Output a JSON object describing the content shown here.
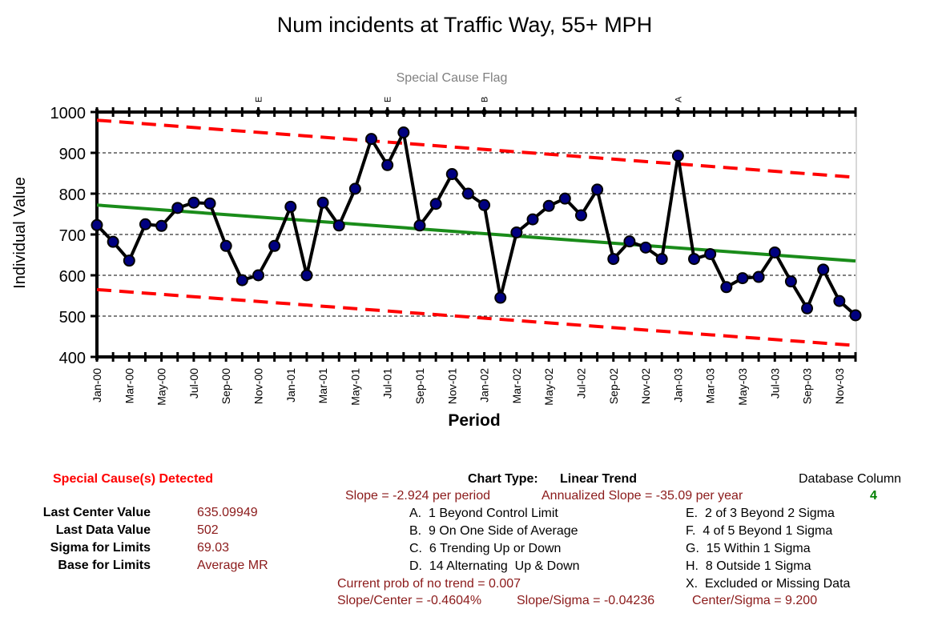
{
  "chart_data": {
    "type": "line",
    "title": "Num incidents at Traffic Way, 55+ MPH",
    "subtitle": "Special Cause Flag",
    "xlabel": "Period",
    "ylabel": "Individual Value",
    "ylim": [
      400,
      1000
    ],
    "yticks": [
      "1000",
      "900",
      "800",
      "700",
      "600",
      "500",
      "400"
    ],
    "grid": true,
    "x_tick_labels": [
      "Jan-00",
      "Mar-00",
      "May-00",
      "Jul-00",
      "Sep-00",
      "Nov-00",
      "Jan-01",
      "Mar-01",
      "May-01",
      "Jul-01",
      "Sep-01",
      "Nov-01",
      "Jan-02",
      "Mar-02",
      "May-02",
      "Jul-02",
      "Sep-02",
      "Nov-02",
      "Jan-03",
      "Mar-03",
      "May-03",
      "Jul-03",
      "Sep-03",
      "Nov-03"
    ],
    "periods": [
      "Jan-00",
      "Feb-00",
      "Mar-00",
      "Apr-00",
      "May-00",
      "Jun-00",
      "Jul-00",
      "Aug-00",
      "Sep-00",
      "Oct-00",
      "Nov-00",
      "Dec-00",
      "Jan-01",
      "Feb-01",
      "Mar-01",
      "Apr-01",
      "May-01",
      "Jun-01",
      "Jul-01",
      "Aug-01",
      "Sep-01",
      "Oct-01",
      "Nov-01",
      "Dec-01",
      "Jan-02",
      "Feb-02",
      "Mar-02",
      "Apr-02",
      "May-02",
      "Jun-02",
      "Jul-02",
      "Aug-02",
      "Sep-02",
      "Oct-02",
      "Nov-02",
      "Dec-02",
      "Jan-03",
      "Feb-03",
      "Mar-03",
      "Apr-03",
      "May-03",
      "Jun-03",
      "Jul-03",
      "Aug-03",
      "Sep-03",
      "Oct-03",
      "Nov-03",
      "Dec-03"
    ],
    "series": [
      {
        "values": [
          723,
          682,
          636,
          725,
          721,
          765,
          778,
          776,
          672,
          588,
          600,
          672,
          768,
          600,
          778,
          722,
          812,
          934,
          870,
          950,
          722,
          775,
          848,
          800,
          772,
          545,
          705,
          737,
          770,
          788,
          747,
          810,
          640,
          683,
          668,
          640,
          893,
          640,
          652,
          571,
          593,
          596,
          656,
          585,
          519,
          614,
          537,
          502
        ],
        "color": "#000080"
      },
      {
        "values": [
          772,
          635
        ],
        "color": "#1a8c1a"
      },
      {
        "values": [
          980,
          840
        ],
        "color": "#ff0000"
      },
      {
        "values": [
          565,
          428
        ],
        "color": "#ff0000"
      }
    ],
    "flags": [
      {
        "period": "Nov-00",
        "label": "E"
      },
      {
        "period": "Jun-01",
        "label": ""
      },
      {
        "period": "Jul-01",
        "label": "E"
      },
      {
        "period": "Aug-01",
        "label": ""
      },
      {
        "period": "Jan-02",
        "label": "B"
      },
      {
        "period": "Jan-03",
        "label": "A"
      }
    ]
  },
  "info": {
    "special_cause": "Special Cause(s) Detected",
    "stats": [
      {
        "label": "Last Center Value",
        "value": "635.09949"
      },
      {
        "label": "Last Data Value",
        "value": "502"
      },
      {
        "label": "Sigma for Limits",
        "value": "69.03"
      },
      {
        "label": "Base for Limits",
        "value": "Average MR"
      }
    ],
    "chart_type_label": "Chart Type:",
    "chart_type_value": "Linear Trend",
    "slope_text": "Slope = -2.924 per period",
    "annualized_text": "Annualized Slope = -35.09 per year",
    "db_column_label": "Database Column",
    "db_column_value": "4",
    "rules_mid": [
      "A.  1 Beyond Control Limit",
      "B.  9 On One Side of Average",
      "C.  6 Trending Up or Down",
      "D.  14 Alternating  Up & Down"
    ],
    "rules_right": [
      "E.  2 of 3 Beyond 2 Sigma",
      "F.  4 of 5 Beyond 1 Sigma",
      "G.  15 Within 1 Sigma",
      "H.  8 Outside 1 Sigma",
      "X.  Excluded or Missing Data"
    ],
    "prob_text": "Current prob of no trend = 0.007",
    "slope_center": "Slope/Center = -0.4604%",
    "slope_sigma": "Slope/Sigma = -0.04236",
    "center_sigma": "Center/Sigma = 9.200"
  }
}
